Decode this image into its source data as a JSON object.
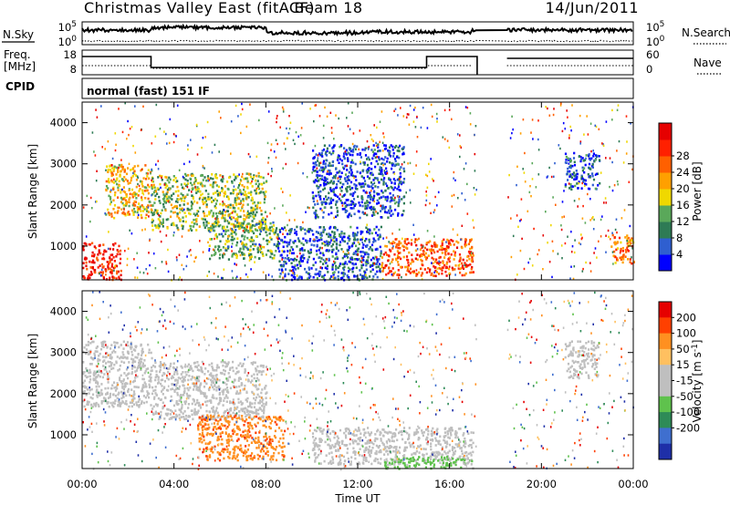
{
  "header": {
    "title": "Christmas Valley East (fitACF)",
    "beam": "Beam 18",
    "date": "14/Jun/2011"
  },
  "status_panels": {
    "nsky_label": "N.Sky",
    "nsearch_label": "N.Search",
    "noise_ticks": [
      "10^5",
      "10^0"
    ],
    "noise_ticks_right": [
      "10^5",
      "10^0"
    ],
    "freq_label_1": "Freq.",
    "freq_label_2": "[MHz]",
    "freq_ticks": [
      "18",
      "8"
    ],
    "nave_label": "Nave",
    "nave_ticks": [
      "60",
      "0"
    ],
    "cpid_label": "CPID",
    "cpid_value": "normal (fast) 151 IF"
  },
  "colors": {
    "power_scale": [
      "#0000ff",
      "#2f5fd0",
      "#2e7b55",
      "#5aa85a",
      "#f0d800",
      "#ffa000",
      "#ff6000",
      "#ff2000",
      "#e60000"
    ],
    "velocity_scale": [
      "#e60000",
      "#ff4000",
      "#ff9020",
      "#ffc060",
      "#bfbfbf",
      "#bfbfbf",
      "#5fc24d",
      "#2e8b57",
      "#3f6fcf",
      "#1e2fa8"
    ]
  },
  "chart_data": [
    {
      "type": "heatmap",
      "name": "Power panel",
      "ylabel": "Slant Range [km]",
      "yticks": [
        1000,
        2000,
        3000,
        4000
      ],
      "ylim": [
        180,
        4500
      ],
      "colorbar_label": "Power [dB]",
      "colorbar_ticks": [
        4,
        8,
        12,
        16,
        20,
        24,
        28
      ],
      "colorbar_range": [
        0,
        32
      ],
      "data_gap_ut": [
        "17:10",
        "18:30"
      ],
      "scatter_regions": [
        {
          "t": [
            0.0,
            1.7
          ],
          "range": [
            200,
            1100
          ],
          "value": 28
        },
        {
          "t": [
            1.0,
            3.0
          ],
          "range": [
            1700,
            3000
          ],
          "value": 18
        },
        {
          "t": [
            3.0,
            8.0
          ],
          "range": [
            1400,
            2800
          ],
          "value": 14
        },
        {
          "t": [
            5.5,
            8.5
          ],
          "range": [
            700,
            1600
          ],
          "value": 12
        },
        {
          "t": [
            8.5,
            13.0
          ],
          "range": [
            200,
            1500
          ],
          "value": 6
        },
        {
          "t": [
            10.0,
            14.0
          ],
          "range": [
            1700,
            3500
          ],
          "value": 5
        },
        {
          "t": [
            13.0,
            17.0
          ],
          "range": [
            300,
            1200
          ],
          "value": 24
        },
        {
          "t": [
            21.0,
            22.5
          ],
          "range": [
            2400,
            3300
          ],
          "value": 6
        },
        {
          "t": [
            23.0,
            24.0
          ],
          "range": [
            600,
            1300
          ],
          "value": 22
        }
      ]
    },
    {
      "type": "heatmap",
      "name": "Velocity panel",
      "ylabel": "Slant Range [km]",
      "yticks": [
        1000,
        2000,
        3000,
        4000
      ],
      "ylim": [
        180,
        4500
      ],
      "xlabel": "Time UT",
      "xticks": [
        "00:00",
        "04:00",
        "08:00",
        "12:00",
        "16:00",
        "20:00",
        "00:00"
      ],
      "xlim_hours": [
        0,
        24
      ],
      "colorbar_label": "Velocity [m s^-1]",
      "colorbar_ticks": [
        200,
        100,
        50,
        15,
        -15,
        -50,
        -100,
        -200
      ],
      "data_gap_ut": [
        "17:10",
        "18:30"
      ],
      "scatter_regions": [
        {
          "t": [
            0.0,
            3.0
          ],
          "range": [
            1700,
            3300
          ],
          "value": 0
        },
        {
          "t": [
            3.0,
            8.0
          ],
          "range": [
            1400,
            2800
          ],
          "value": 0
        },
        {
          "t": [
            5.0,
            8.8
          ],
          "range": [
            400,
            1500
          ],
          "value": 120
        },
        {
          "t": [
            10.0,
            17.0
          ],
          "range": [
            300,
            1200
          ],
          "value": 0
        },
        {
          "t": [
            13.0,
            17.0
          ],
          "range": [
            200,
            500
          ],
          "value": -60
        },
        {
          "t": [
            21.0,
            22.5
          ],
          "range": [
            2400,
            3300
          ],
          "value": 10
        }
      ]
    }
  ]
}
